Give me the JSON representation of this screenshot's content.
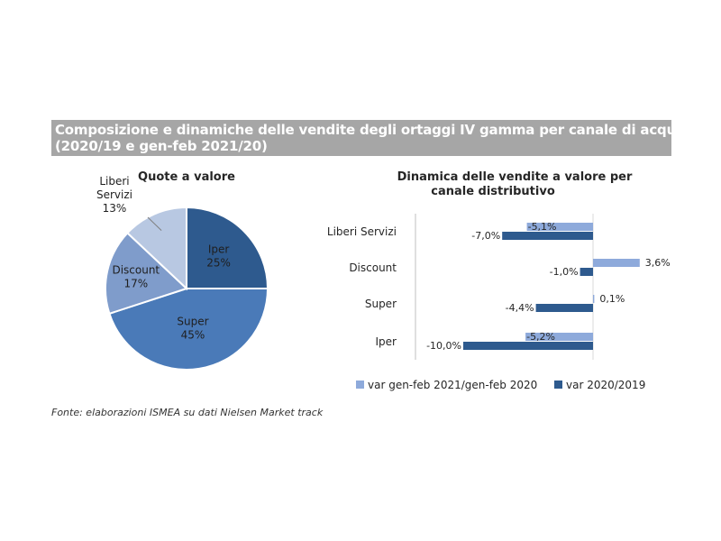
{
  "header": {
    "line1": "Composizione e dinamiche delle vendite degli ortaggi IV gamma per canale di acquisto",
    "line2": "(2020/19 e gen-feb 2021/20)"
  },
  "source": "Fonte: elaborazioni ISMEA su dati Nielsen Market track",
  "colors": {
    "header_bg": "#a6a6a6",
    "iper": "#2e5a8e",
    "super": "#4a7ab8",
    "discount": "#7f9ccb",
    "liberi": "#b8c8e2",
    "series_2021": "#8eaadb",
    "series_2020": "#2e5a8e"
  },
  "chart_data": [
    {
      "type": "pie",
      "title": "Quote a valore",
      "slices": [
        {
          "label": "Iper",
          "value": 25,
          "value_label": "25%"
        },
        {
          "label": "Super",
          "value": 45,
          "value_label": "45%"
        },
        {
          "label": "Discount",
          "value": 17,
          "value_label": "17%"
        },
        {
          "label": "Liberi Servizi",
          "label_lines": [
            "Liberi",
            "Servizi"
          ],
          "value": 13,
          "value_label": "13%"
        }
      ]
    },
    {
      "type": "bar",
      "orientation": "horizontal",
      "title_lines": [
        "Dinamica delle vendite a valore per",
        "canale distributivo"
      ],
      "categories": [
        "Liberi Servizi",
        "Discount",
        "Super",
        "Iper"
      ],
      "xlim": [
        -10.5,
        4
      ],
      "legend_position": "bottom",
      "series": [
        {
          "name": "var gen-feb 2021/gen-feb 2020",
          "values": [
            -5.1,
            3.6,
            0.1,
            -5.2
          ],
          "labels": [
            "-5,1%",
            "3,6%",
            "0,1%",
            "-5,2%"
          ]
        },
        {
          "name": "var 2020/2019",
          "values": [
            -7.0,
            -1.0,
            -4.4,
            -10.0
          ],
          "labels": [
            "-7,0%",
            "-1,0%",
            "-4,4%",
            "-10,0%"
          ]
        }
      ]
    }
  ]
}
